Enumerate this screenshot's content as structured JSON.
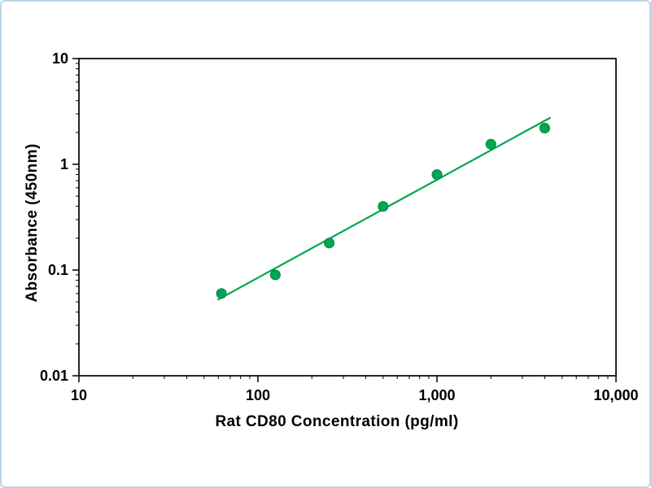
{
  "page": {
    "background": "#ffffff",
    "border_color": "#b6d7e8"
  },
  "chart_data": {
    "type": "scatter",
    "title": "",
    "xlabel": "Rat CD80 Concentration (pg/ml)",
    "ylabel": "Absorbance (450nm)",
    "xscale": "log",
    "yscale": "log",
    "xlim": [
      10,
      10000
    ],
    "ylim": [
      0.01,
      10
    ],
    "x": [
      62.5,
      125,
      250,
      500,
      1000,
      2000,
      4000
    ],
    "y": [
      0.06,
      0.09,
      0.18,
      0.4,
      0.8,
      1.55,
      2.2
    ],
    "x_ticks": [
      10,
      100,
      1000,
      10000
    ],
    "x_tick_labels": [
      "10",
      "100",
      "1,000",
      "10,000"
    ],
    "y_ticks": [
      10,
      1,
      0.1,
      0.01
    ],
    "y_tick_labels": [
      "10",
      "1",
      "0.1",
      "0.01"
    ],
    "grid": false,
    "legend_position": "none",
    "trendline": "linear fit in log-log space through standard points",
    "marker_color": "#00a651",
    "marker_edge_color": "#00843f",
    "line_color": "#00a651",
    "frame_color": "#000000"
  }
}
